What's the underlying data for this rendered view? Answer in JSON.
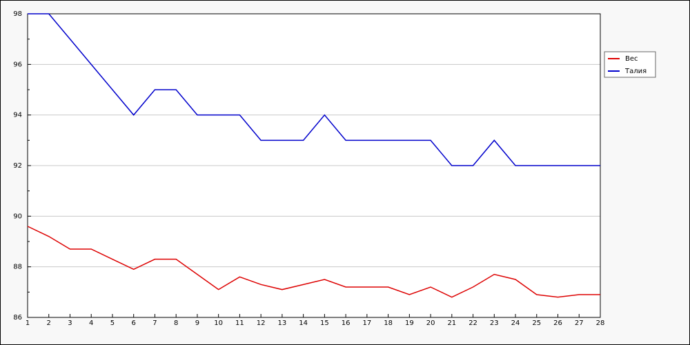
{
  "chart_data": {
    "type": "line",
    "x": [
      1,
      2,
      3,
      4,
      5,
      6,
      7,
      8,
      9,
      10,
      11,
      12,
      13,
      14,
      15,
      16,
      17,
      18,
      19,
      20,
      21,
      22,
      23,
      24,
      25,
      26,
      27,
      28
    ],
    "series": [
      {
        "name": "Вес",
        "color": "#dd0000",
        "values": [
          89.6,
          89.2,
          88.7,
          88.7,
          88.3,
          87.9,
          88.3,
          88.3,
          87.7,
          87.1,
          87.6,
          87.3,
          87.1,
          87.3,
          87.5,
          87.2,
          87.2,
          87.2,
          86.9,
          87.2,
          86.8,
          87.2,
          87.7,
          87.5,
          86.9,
          86.8,
          86.9,
          86.9
        ]
      },
      {
        "name": "Талия",
        "color": "#0000cc",
        "values": [
          98,
          98,
          97,
          96,
          95,
          94,
          95,
          95,
          94,
          94,
          94,
          93,
          93,
          93,
          94,
          93,
          93,
          93,
          93,
          93,
          92,
          92,
          93,
          92,
          92,
          92,
          92,
          92
        ]
      }
    ],
    "xlim": [
      1,
      28
    ],
    "xticks": [
      1,
      2,
      3,
      4,
      5,
      6,
      7,
      8,
      9,
      10,
      11,
      12,
      13,
      14,
      15,
      16,
      17,
      18,
      19,
      20,
      21,
      22,
      23,
      24,
      25,
      26,
      27,
      28
    ],
    "ylim": [
      86,
      98
    ],
    "yticks": [
      86,
      88,
      90,
      92,
      94,
      96,
      98
    ],
    "grid": true,
    "legend": "right"
  }
}
